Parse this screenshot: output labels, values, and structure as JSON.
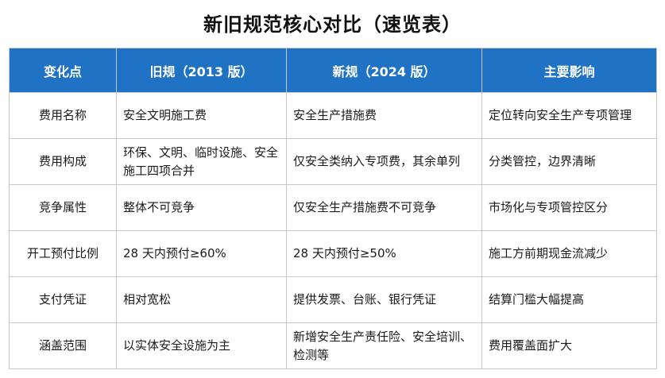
{
  "title": "新旧规范核心对比（速览表）",
  "header_color": "#1f72c4",
  "columns": [
    "变化点",
    "旧规（2013 版）",
    "新规（2024 版）",
    "主要影响"
  ],
  "rows": [
    [
      "费用名称",
      "安全文明施工费",
      "安全生产措施费",
      "定位转向安全生产专项管理"
    ],
    [
      "费用构成",
      "环保、文明、临时设施、安全施工四项合并",
      "仅安全类纳入专项费，其余单列",
      "分类管控，边界清晰"
    ],
    [
      "竞争属性",
      "整体不可竞争",
      "仅安全生产措施费不可竞争",
      "市场化与专项管控区分"
    ],
    [
      "开工预付比例",
      "28 天内预付≥60%",
      "28 天内预付≥50%",
      "施工方前期现金流减少"
    ],
    [
      "支付凭证",
      "相对宽松",
      "提供发票、台账、银行凭证",
      "结算门槛大幅提高"
    ],
    [
      "涵盖范围",
      "以实体安全设施为主",
      "新增安全生产责任险、安全培训、检测等",
      "费用覆盖面扩大"
    ]
  ]
}
